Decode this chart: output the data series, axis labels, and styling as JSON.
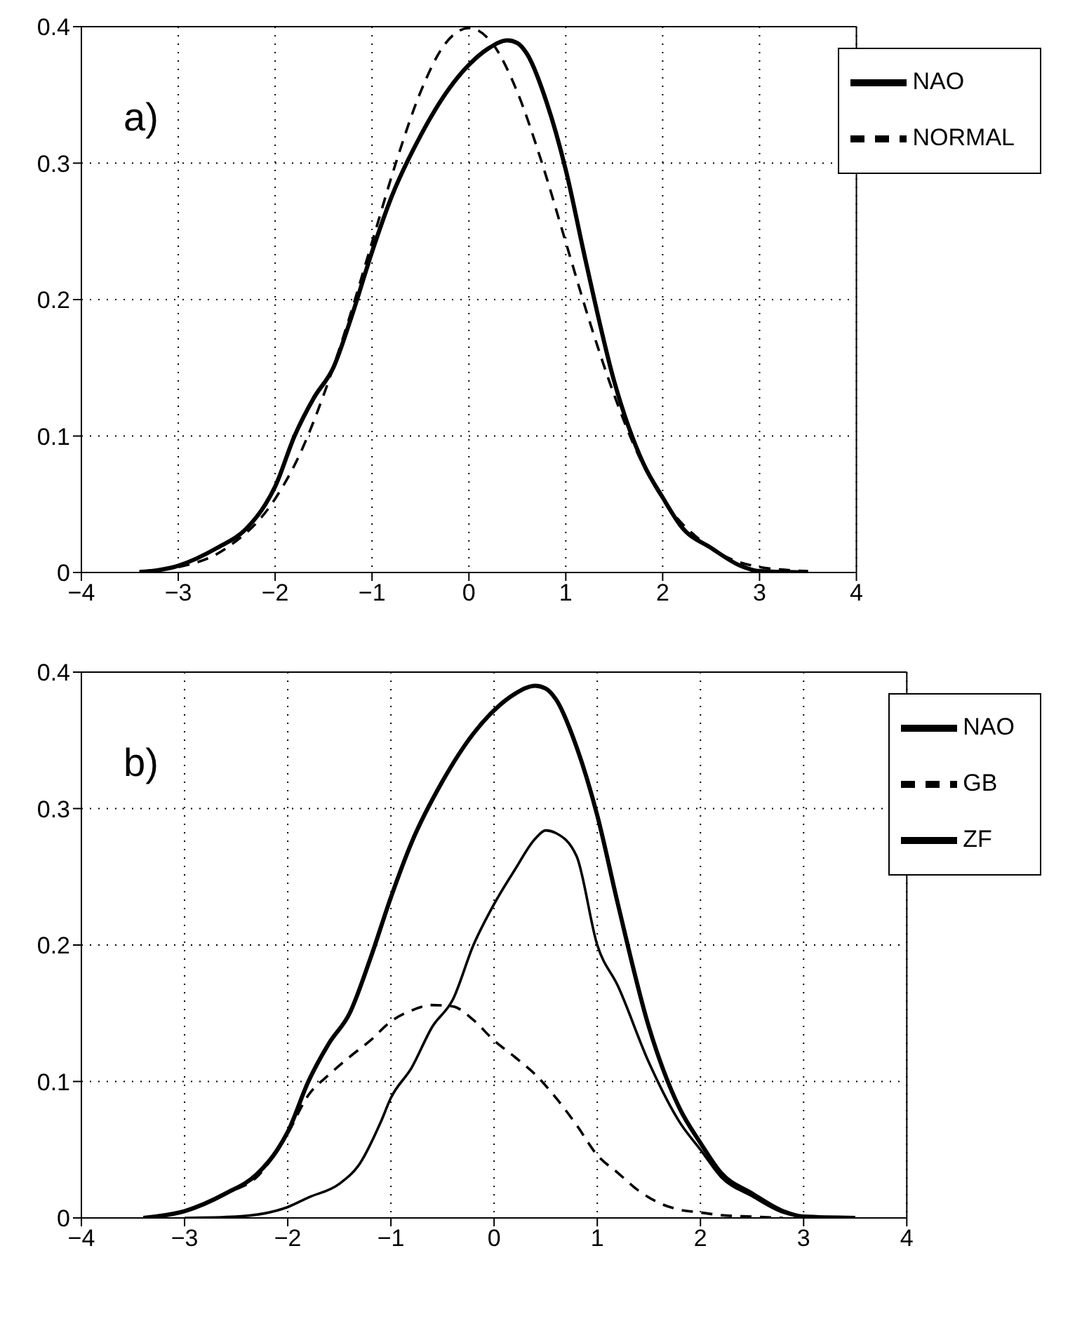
{
  "chart_data": [
    {
      "type": "line",
      "annotations": [
        "a)"
      ],
      "xlim": [
        -4,
        4
      ],
      "xticks": [
        -4,
        -3,
        -2,
        -1,
        0,
        1,
        2,
        3,
        4
      ],
      "ylim": [
        0,
        0.4
      ],
      "yticks": [
        0,
        0.1,
        0.2,
        0.3,
        0.4
      ],
      "grid": true,
      "legend": "top right",
      "series": [
        {
          "name": "NAO",
          "color": "#000000",
          "line_style": "solid",
          "x": [
            -3.4,
            -3,
            -2.6,
            -2.3,
            -2.1,
            -2,
            -1.8,
            -1.6,
            -1.4,
            -1.2,
            -1,
            -0.8,
            -0.5,
            -0.2,
            0,
            0.2,
            0.4,
            0.5,
            0.6,
            0.8,
            1,
            1.2,
            1.5,
            1.8,
            2,
            2.2,
            2.5,
            2.8,
            3,
            3.5
          ],
          "values": [
            0,
            0.005,
            0.018,
            0.032,
            0.05,
            0.063,
            0.1,
            0.128,
            0.15,
            0.19,
            0.235,
            0.275,
            0.32,
            0.355,
            0.372,
            0.384,
            0.39,
            0.388,
            0.38,
            0.345,
            0.295,
            0.23,
            0.14,
            0.08,
            0.055,
            0.033,
            0.018,
            0.005,
            0.001,
            0
          ]
        },
        {
          "name": "NORMAL",
          "color": "#000000",
          "line_style": "dashed",
          "x": [
            -3.4,
            -3,
            -2.5,
            -2,
            -1.75,
            -1.5,
            -1.25,
            -1,
            -0.75,
            -0.5,
            -0.25,
            0,
            0.25,
            0.5,
            0.75,
            1,
            1.25,
            1.5,
            1.75,
            2,
            2.5,
            3,
            3.5
          ],
          "values": [
            0.001,
            0.004,
            0.018,
            0.054,
            0.086,
            0.13,
            0.183,
            0.242,
            0.301,
            0.352,
            0.387,
            0.399,
            0.387,
            0.352,
            0.301,
            0.242,
            0.183,
            0.13,
            0.086,
            0.054,
            0.018,
            0.004,
            0.001
          ]
        }
      ]
    },
    {
      "type": "line",
      "annotations": [
        "b)"
      ],
      "xlim": [
        -4,
        4
      ],
      "xticks": [
        -4,
        -3,
        -2,
        -1,
        0,
        1,
        2,
        3,
        4
      ],
      "ylim": [
        0,
        0.4
      ],
      "yticks": [
        0,
        0.1,
        0.2,
        0.3,
        0.4
      ],
      "grid": true,
      "legend": "top right",
      "series": [
        {
          "name": "NAO",
          "color": "#000000",
          "line_style": "solid",
          "x": [
            -3.4,
            -3,
            -2.6,
            -2.3,
            -2.1,
            -2,
            -1.8,
            -1.6,
            -1.4,
            -1.2,
            -1,
            -0.8,
            -0.5,
            -0.2,
            0,
            0.2,
            0.4,
            0.5,
            0.6,
            0.8,
            1,
            1.2,
            1.5,
            1.8,
            2,
            2.2,
            2.5,
            2.8,
            3,
            3.5
          ],
          "values": [
            0,
            0.005,
            0.018,
            0.032,
            0.05,
            0.063,
            0.1,
            0.128,
            0.15,
            0.19,
            0.235,
            0.275,
            0.32,
            0.355,
            0.372,
            0.384,
            0.39,
            0.388,
            0.38,
            0.345,
            0.295,
            0.23,
            0.14,
            0.08,
            0.055,
            0.033,
            0.018,
            0.005,
            0.001,
            0
          ]
        },
        {
          "name": "GB",
          "color": "#000000",
          "line_style": "dashed",
          "x": [
            -3.4,
            -3,
            -2.6,
            -2.3,
            -2,
            -1.8,
            -1.6,
            -1.4,
            -1.2,
            -1,
            -0.8,
            -0.6,
            -0.4,
            -0.2,
            0,
            0.2,
            0.4,
            0.6,
            0.8,
            1,
            1.2,
            1.4,
            1.6,
            1.8,
            2,
            2.2,
            2.5,
            2.8
          ],
          "values": [
            0,
            0.005,
            0.018,
            0.03,
            0.062,
            0.09,
            0.105,
            0.118,
            0.13,
            0.144,
            0.152,
            0.156,
            0.155,
            0.145,
            0.13,
            0.118,
            0.105,
            0.088,
            0.068,
            0.046,
            0.033,
            0.02,
            0.011,
            0.006,
            0.004,
            0.002,
            0.001,
            0
          ]
        },
        {
          "name": "ZF",
          "color": "#000000",
          "line_style": "solid",
          "x": [
            -3,
            -2.5,
            -2,
            -1.8,
            -1.5,
            -1.3,
            -1.1,
            -1,
            -0.8,
            -0.6,
            -0.4,
            -0.2,
            0,
            0.2,
            0.4,
            0.5,
            0.6,
            0.8,
            1,
            1.2,
            1.5,
            1.8,
            2,
            2.2,
            2.5,
            2.8,
            3,
            3.5
          ],
          "values": [
            0,
            0.001,
            0.008,
            0.015,
            0.025,
            0.04,
            0.07,
            0.088,
            0.11,
            0.14,
            0.16,
            0.2,
            0.23,
            0.255,
            0.278,
            0.284,
            0.282,
            0.265,
            0.2,
            0.17,
            0.114,
            0.07,
            0.05,
            0.03,
            0.016,
            0.004,
            0.001,
            0
          ]
        }
      ]
    }
  ]
}
